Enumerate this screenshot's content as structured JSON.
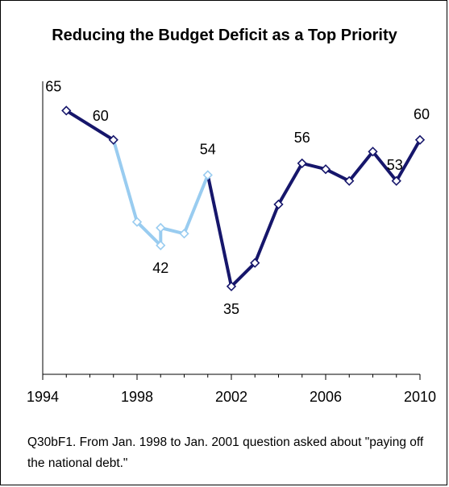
{
  "chart_data": {
    "type": "line",
    "title": "Reducing the Budget Deficit as a Top Priority",
    "xlabel": "",
    "ylabel": "",
    "xlim": [
      1994,
      2010
    ],
    "ylim": [
      20,
      70
    ],
    "x_ticks": [
      "1994",
      "1998",
      "2002",
      "2006",
      "2010"
    ],
    "grid": false,
    "series": [
      {
        "color": "#16166B",
        "points": [
          {
            "x": 1995,
            "y": 65
          },
          {
            "x": 1997,
            "y": 60
          }
        ]
      },
      {
        "color": "#99CCF0",
        "points": [
          {
            "x": 1997,
            "y": 60
          },
          {
            "x": 1998,
            "y": 46
          },
          {
            "x": 1999,
            "y": 42
          },
          {
            "x": 1999,
            "y": 45
          },
          {
            "x": 2000,
            "y": 44
          },
          {
            "x": 2001,
            "y": 54
          }
        ]
      },
      {
        "color": "#16166B",
        "points": [
          {
            "x": 2001,
            "y": 54
          },
          {
            "x": 2002,
            "y": 35
          },
          {
            "x": 2003,
            "y": 39
          },
          {
            "x": 2004,
            "y": 49
          },
          {
            "x": 2005,
            "y": 56
          },
          {
            "x": 2006,
            "y": 55
          },
          {
            "x": 2007,
            "y": 53
          },
          {
            "x": 2008,
            "y": 58
          },
          {
            "x": 2009,
            "y": 53
          },
          {
            "x": 2010,
            "y": 60
          }
        ]
      }
    ],
    "data_labels": [
      {
        "x": 1995,
        "y": 65,
        "text": "65",
        "pos": "above-left"
      },
      {
        "x": 1997,
        "y": 60,
        "text": "60",
        "pos": "above-left"
      },
      {
        "x": 1999,
        "y": 42,
        "text": "42",
        "pos": "below"
      },
      {
        "x": 2001,
        "y": 54,
        "text": "54",
        "pos": "above"
      },
      {
        "x": 2002,
        "y": 35,
        "text": "35",
        "pos": "below"
      },
      {
        "x": 2005,
        "y": 56,
        "text": "56",
        "pos": "above"
      },
      {
        "x": 2009,
        "y": 53,
        "text": "53",
        "pos": "above-left"
      },
      {
        "x": 2010,
        "y": 60,
        "text": "60",
        "pos": "above"
      }
    ]
  },
  "note": "Q30bF1. From Jan. 1998 to Jan. 2001 question asked about \"paying off the national debt.\""
}
